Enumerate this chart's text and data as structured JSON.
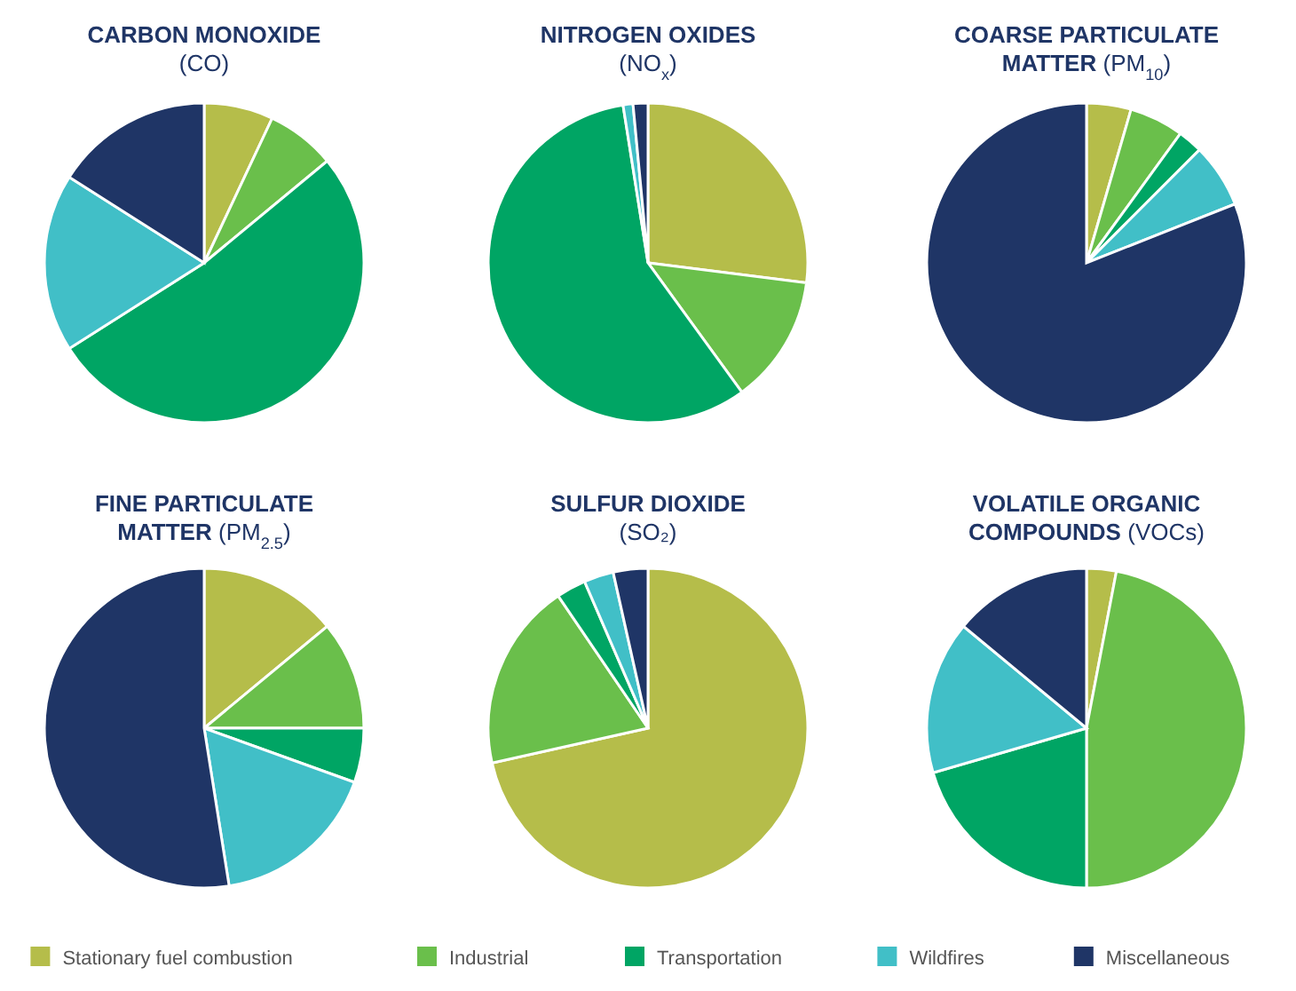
{
  "chart_data": [
    {
      "type": "pie",
      "title": "CARBON MONOXIDE",
      "subtitle": "(CO)",
      "categories": [
        "Stationary fuel combustion",
        "Industrial",
        "Transportation",
        "Wildfires",
        "Miscellaneous"
      ],
      "values": [
        7,
        7,
        52,
        18,
        16
      ],
      "colors": [
        "#b5bd4a",
        "#6abf4b",
        "#00a564",
        "#41bfc7",
        "#1f3566"
      ],
      "legend": "bottom"
    },
    {
      "type": "pie",
      "title": "NITROGEN OXIDES",
      "subtitle": "(NO$_{x}$)",
      "categories": [
        null,
        null,
        null,
        null,
        null
      ],
      "values": [
        27,
        13,
        57.5,
        1,
        1.5
      ],
      "colors": [
        "#b5bd4a",
        "#6abf4b",
        "#00a564",
        "#41bfc7",
        "#1f3566"
      ]
    },
    {
      "type": "pie",
      "title": "COARSE PARTICULATE MATTER",
      "subtitle": "(PM$_{10}$)",
      "categories": [
        null,
        null,
        null,
        null,
        null
      ],
      "values": [
        4.5,
        5.5,
        2.5,
        6.5,
        81
      ],
      "colors": [
        "#b5bd4a",
        "#6abf4b",
        "#00a564",
        "#41bfc7",
        "#1f3566"
      ]
    },
    {
      "type": "pie",
      "title": "FINE PARTICULATE MATTER",
      "subtitle": "(PM$_{2.5}$)",
      "categories": [
        null,
        null,
        null,
        null,
        null
      ],
      "values": [
        14,
        11,
        5.5,
        17,
        52.5
      ],
      "colors": [
        "#b5bd4a",
        "#6abf4b",
        "#00a564",
        "#41bfc7",
        "#1f3566"
      ]
    },
    {
      "type": "pie",
      "title": "SULFUR DIOXIDE",
      "subtitle": "(SO₂)",
      "categories": [
        null,
        null,
        null,
        null,
        null
      ],
      "values": [
        71.5,
        19,
        3,
        3,
        3.5
      ],
      "colors": [
        "#b5bd4a",
        "#6abf4b",
        "#00a564",
        "#41bfc7",
        "#1f3566"
      ]
    },
    {
      "type": "pie",
      "title": "VOLATILE ORGANIC COMPOUNDS",
      "subtitle": "(VOCs)",
      "categories": [
        null,
        null,
        null,
        null,
        null
      ],
      "values": [
        3,
        47,
        20.5,
        15.5,
        14
      ],
      "colors": [
        "#b5bd4a",
        "#6abf4b",
        "#00a564",
        "#41bfc7",
        "#1f3566"
      ]
    }
  ]
}
